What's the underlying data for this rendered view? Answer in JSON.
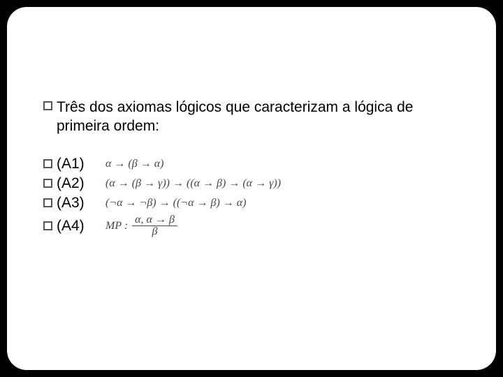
{
  "intro": {
    "text": "Três dos  axiomas lógicos que caracterizam a lógica de primeira ordem:"
  },
  "axioms": {
    "a1": {
      "label": "(A1)",
      "formula": "α → (β → α)"
    },
    "a2": {
      "label": "(A2)",
      "formula": "(α → (β → γ)) → ((α → β) → (α → γ))"
    },
    "a3": {
      "label": "(A3)",
      "formula": "(¬α → ¬β) → ((¬α → β) → α)"
    },
    "a4": {
      "label": " (A4)",
      "mp_prefix": "MP :",
      "mp_top": "α, α → β",
      "mp_bot": "β"
    }
  }
}
